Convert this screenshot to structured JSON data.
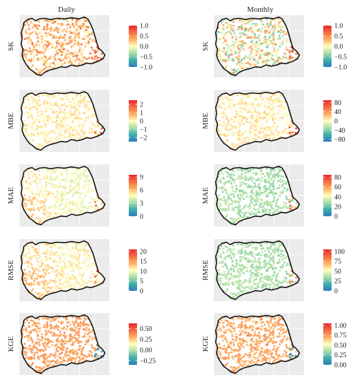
{
  "columns": [
    {
      "id": "daily",
      "title": "Daily"
    },
    {
      "id": "monthly",
      "title": "Monthly"
    }
  ],
  "panels": [
    {
      "id": "sk-daily",
      "col": "daily",
      "metric": "SK",
      "ticks": [
        "1.0",
        "0.5",
        "0.0",
        "−0.5",
        "−1.0"
      ],
      "tick_values": [
        1.0,
        0.5,
        0.0,
        -0.5,
        -1.0
      ],
      "range": [
        -1.0,
        1.0
      ],
      "typical": 0.3,
      "spread": 0.35,
      "west_shift": 0.0,
      "east_hot": 0.95
    },
    {
      "id": "sk-monthly",
      "col": "monthly",
      "metric": "SK",
      "ticks": [
        "1.0",
        "0.5",
        "0.0",
        "−0.5",
        "−1.0"
      ],
      "tick_values": [
        1.0,
        0.5,
        0.0,
        -0.5,
        -1.0
      ],
      "range": [
        -1.0,
        1.0
      ],
      "typical": 0.0,
      "spread": 0.55,
      "west_shift": 0.0,
      "east_hot": 0.95
    },
    {
      "id": "mbe-daily",
      "col": "daily",
      "metric": "MBE",
      "ticks": [
        "2",
        "1",
        "0",
        "−1",
        "−2"
      ],
      "tick_values": [
        2,
        1,
        0,
        -1,
        -2
      ],
      "range": [
        -2.5,
        2.5
      ],
      "typical": 0.2,
      "spread": 0.3,
      "west_shift": 0.0,
      "east_hot": 2.3
    },
    {
      "id": "mbe-monthly",
      "col": "monthly",
      "metric": "MBE",
      "ticks": [
        "80",
        "40",
        "0",
        "−40",
        "−80"
      ],
      "tick_values": [
        80,
        40,
        0,
        -40,
        -80
      ],
      "range": [
        -90,
        90
      ],
      "typical": 8,
      "spread": 12,
      "west_shift": 0,
      "east_hot": 85
    },
    {
      "id": "mae-daily",
      "col": "daily",
      "metric": "MAE",
      "ticks": [
        "9",
        "6",
        "3",
        "0"
      ],
      "tick_values": [
        9,
        6,
        3,
        0
      ],
      "range": [
        0,
        9.5
      ],
      "typical": 4.5,
      "spread": 0.7,
      "west_shift": 1.6,
      "east_hot": 9.0
    },
    {
      "id": "mae-monthly",
      "col": "monthly",
      "metric": "MAE",
      "ticks": [
        "80",
        "60",
        "40",
        "20",
        "0"
      ],
      "tick_values": [
        80,
        60,
        40,
        20,
        0
      ],
      "range": [
        0,
        85
      ],
      "typical": 28,
      "spread": 5,
      "west_shift": 3,
      "east_hot": 80
    },
    {
      "id": "rmse-daily",
      "col": "daily",
      "metric": "RMSE",
      "ticks": [
        "20",
        "15",
        "10",
        "5",
        "0"
      ],
      "tick_values": [
        20,
        15,
        10,
        5,
        0
      ],
      "range": [
        0,
        21
      ],
      "typical": 11,
      "spread": 1.5,
      "west_shift": 3.5,
      "east_hot": 20
    },
    {
      "id": "rmse-monthly",
      "col": "monthly",
      "metric": "RMSE",
      "ticks": [
        "100",
        "75",
        "50",
        "25",
        "0"
      ],
      "tick_values": [
        100,
        75,
        50,
        25,
        0
      ],
      "range": [
        0,
        105
      ],
      "typical": 35,
      "spread": 6,
      "west_shift": 3,
      "east_hot": 100
    },
    {
      "id": "kge-daily",
      "col": "daily",
      "metric": "KGE",
      "ticks": [
        "0.50",
        "0.25",
        "0.00",
        "−0.25"
      ],
      "tick_values": [
        0.5,
        0.25,
        0.0,
        -0.25
      ],
      "range": [
        -0.35,
        0.62
      ],
      "typical": 0.33,
      "spread": 0.07,
      "west_shift": 0.0,
      "east_hot": -0.3
    },
    {
      "id": "kge-monthly",
      "col": "monthly",
      "metric": "KGE",
      "ticks": [
        "1.00",
        "0.75",
        "0.50",
        "0.25",
        "0.00"
      ],
      "tick_values": [
        1.0,
        0.75,
        0.5,
        0.25,
        0.0
      ],
      "range": [
        0.0,
        1.05
      ],
      "typical": 0.72,
      "spread": 0.08,
      "west_shift": 0.0,
      "east_hot": 0.05
    }
  ],
  "colorscale": [
    "#2c7bb6",
    "#3cb0ae",
    "#abdda4",
    "#ffffbf",
    "#fdae61",
    "#f46d43",
    "#e8272a"
  ],
  "map_background": "#ebebeb",
  "grid_color": "#ffffff",
  "outline_color": "#111111"
}
